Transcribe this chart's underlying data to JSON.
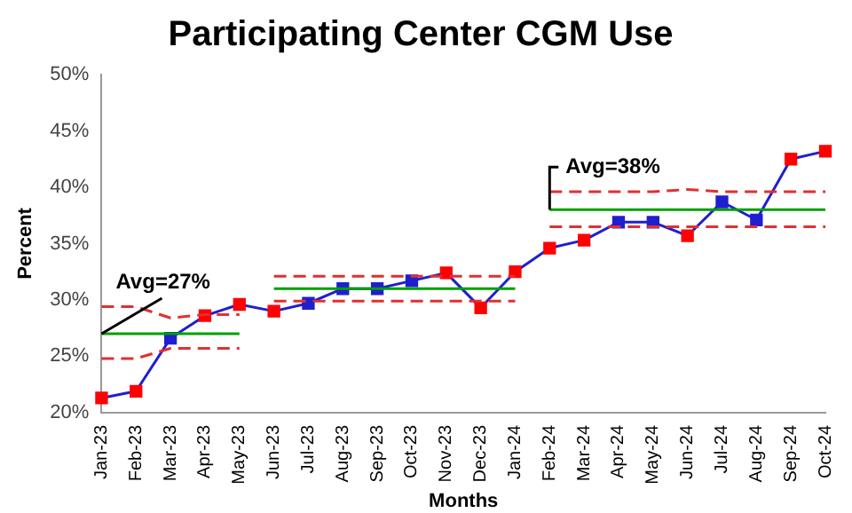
{
  "chart_data": {
    "type": "line",
    "title": "Participating Center CGM Use",
    "xlabel": "Months",
    "ylabel": "Percent",
    "categories": [
      "Jan-23",
      "Feb-23",
      "Mar-23",
      "Apr-23",
      "May-23",
      "Jun-23",
      "Jul-23",
      "Aug-23",
      "Sep-23",
      "Oct-23",
      "Nov-23",
      "Dec-23",
      "Jan-24",
      "Feb-24",
      "Mar-24",
      "Apr-24",
      "May-24",
      "Jun-24",
      "Jul-24",
      "Aug-24",
      "Sep-24",
      "Oct-24"
    ],
    "ylim": [
      20,
      50
    ],
    "yticks": [
      {
        "value": 20,
        "label": "20%"
      },
      {
        "value": 25,
        "label": "25%"
      },
      {
        "value": 30,
        "label": "30%"
      },
      {
        "value": 35,
        "label": "35%"
      },
      {
        "value": 40,
        "label": "40%"
      },
      {
        "value": 45,
        "label": "45%"
      },
      {
        "value": 50,
        "label": "50%"
      }
    ],
    "grid": false,
    "legend": false,
    "marker": "square",
    "series": [
      {
        "color": "#1f1fd0",
        "values": [
          21.3,
          21.9,
          26.6,
          28.6,
          29.6,
          29.0,
          29.7,
          31.0,
          31.0,
          31.7,
          32.4,
          29.3,
          32.5,
          34.6,
          35.3,
          36.9,
          36.9,
          35.7,
          38.7,
          37.1,
          42.5,
          43.2
        ],
        "colors": [
          "#ff0000",
          "#ff0000",
          "#1f1fd0",
          "#ff0000",
          "#ff0000",
          "#ff0000",
          "#1f1fd0",
          "#1f1fd0",
          "#1f1fd0",
          "#1f1fd0",
          "#ff0000",
          "#ff0000",
          "#ff0000",
          "#ff0000",
          "#ff0000",
          "#1f1fd0",
          "#1f1fd0",
          "#ff0000",
          "#1f1fd0",
          "#1f1fd0",
          "#ff0000",
          "#ff0000"
        ]
      },
      {
        "color": "#00a000",
        "marker": "none",
        "values": [
          27.0,
          27.0,
          27.0,
          27.0,
          27.0,
          null,
          null,
          null,
          null,
          null,
          null,
          null,
          null,
          null,
          null,
          null,
          null,
          null,
          null,
          null,
          null,
          null
        ]
      },
      {
        "color": "#00a000",
        "marker": "none",
        "values": [
          null,
          null,
          null,
          null,
          null,
          31.0,
          31.0,
          31.0,
          31.0,
          31.0,
          31.0,
          31.0,
          31.0,
          null,
          null,
          null,
          null,
          null,
          null,
          null,
          null,
          null
        ]
      },
      {
        "color": "#00a000",
        "marker": "none",
        "values": [
          null,
          null,
          null,
          null,
          null,
          null,
          null,
          null,
          null,
          null,
          null,
          null,
          null,
          38.0,
          38.0,
          38.0,
          38.0,
          38.0,
          38.0,
          38.0,
          38.0,
          38.0
        ]
      },
      {
        "color": "#e03030",
        "marker": "none",
        "line_style": "dashed",
        "values": [
          29.4,
          29.4,
          28.4,
          28.7,
          28.7,
          null,
          null,
          null,
          null,
          null,
          null,
          null,
          null,
          null,
          null,
          null,
          null,
          null,
          null,
          null,
          null,
          null
        ]
      },
      {
        "color": "#e03030",
        "marker": "none",
        "line_style": "dashed",
        "values": [
          24.8,
          24.8,
          25.7,
          25.7,
          25.7,
          null,
          null,
          null,
          null,
          null,
          null,
          null,
          null,
          null,
          null,
          null,
          null,
          null,
          null,
          null,
          null,
          null
        ]
      },
      {
        "color": "#e03030",
        "marker": "none",
        "line_style": "dashed",
        "values": [
          null,
          null,
          null,
          null,
          null,
          32.1,
          32.1,
          32.1,
          32.1,
          32.1,
          32.1,
          32.1,
          32.1,
          null,
          null,
          null,
          null,
          null,
          null,
          null,
          null,
          null
        ]
      },
      {
        "color": "#e03030",
        "marker": "none",
        "line_style": "dashed",
        "values": [
          null,
          null,
          null,
          null,
          null,
          29.9,
          29.9,
          29.9,
          29.9,
          29.9,
          29.9,
          29.9,
          29.9,
          null,
          null,
          null,
          null,
          null,
          null,
          null,
          null,
          null
        ]
      },
      {
        "color": "#e03030",
        "marker": "none",
        "line_style": "dashed",
        "values": [
          null,
          null,
          null,
          null,
          null,
          null,
          null,
          null,
          null,
          null,
          null,
          null,
          null,
          39.6,
          39.6,
          39.6,
          39.6,
          39.8,
          39.6,
          39.6,
          39.6,
          39.6
        ]
      },
      {
        "color": "#e03030",
        "marker": "none",
        "line_style": "dashed",
        "values": [
          null,
          null,
          null,
          null,
          null,
          null,
          null,
          null,
          null,
          null,
          null,
          null,
          null,
          36.5,
          36.5,
          36.5,
          36.5,
          36.5,
          36.5,
          36.5,
          36.5,
          36.5
        ]
      }
    ],
    "annotations": [
      {
        "text": "Avg=27%",
        "x": "Jan-23",
        "y": 27
      },
      {
        "text": "Avg=38%",
        "x": "Feb-24",
        "y": 38
      }
    ]
  }
}
